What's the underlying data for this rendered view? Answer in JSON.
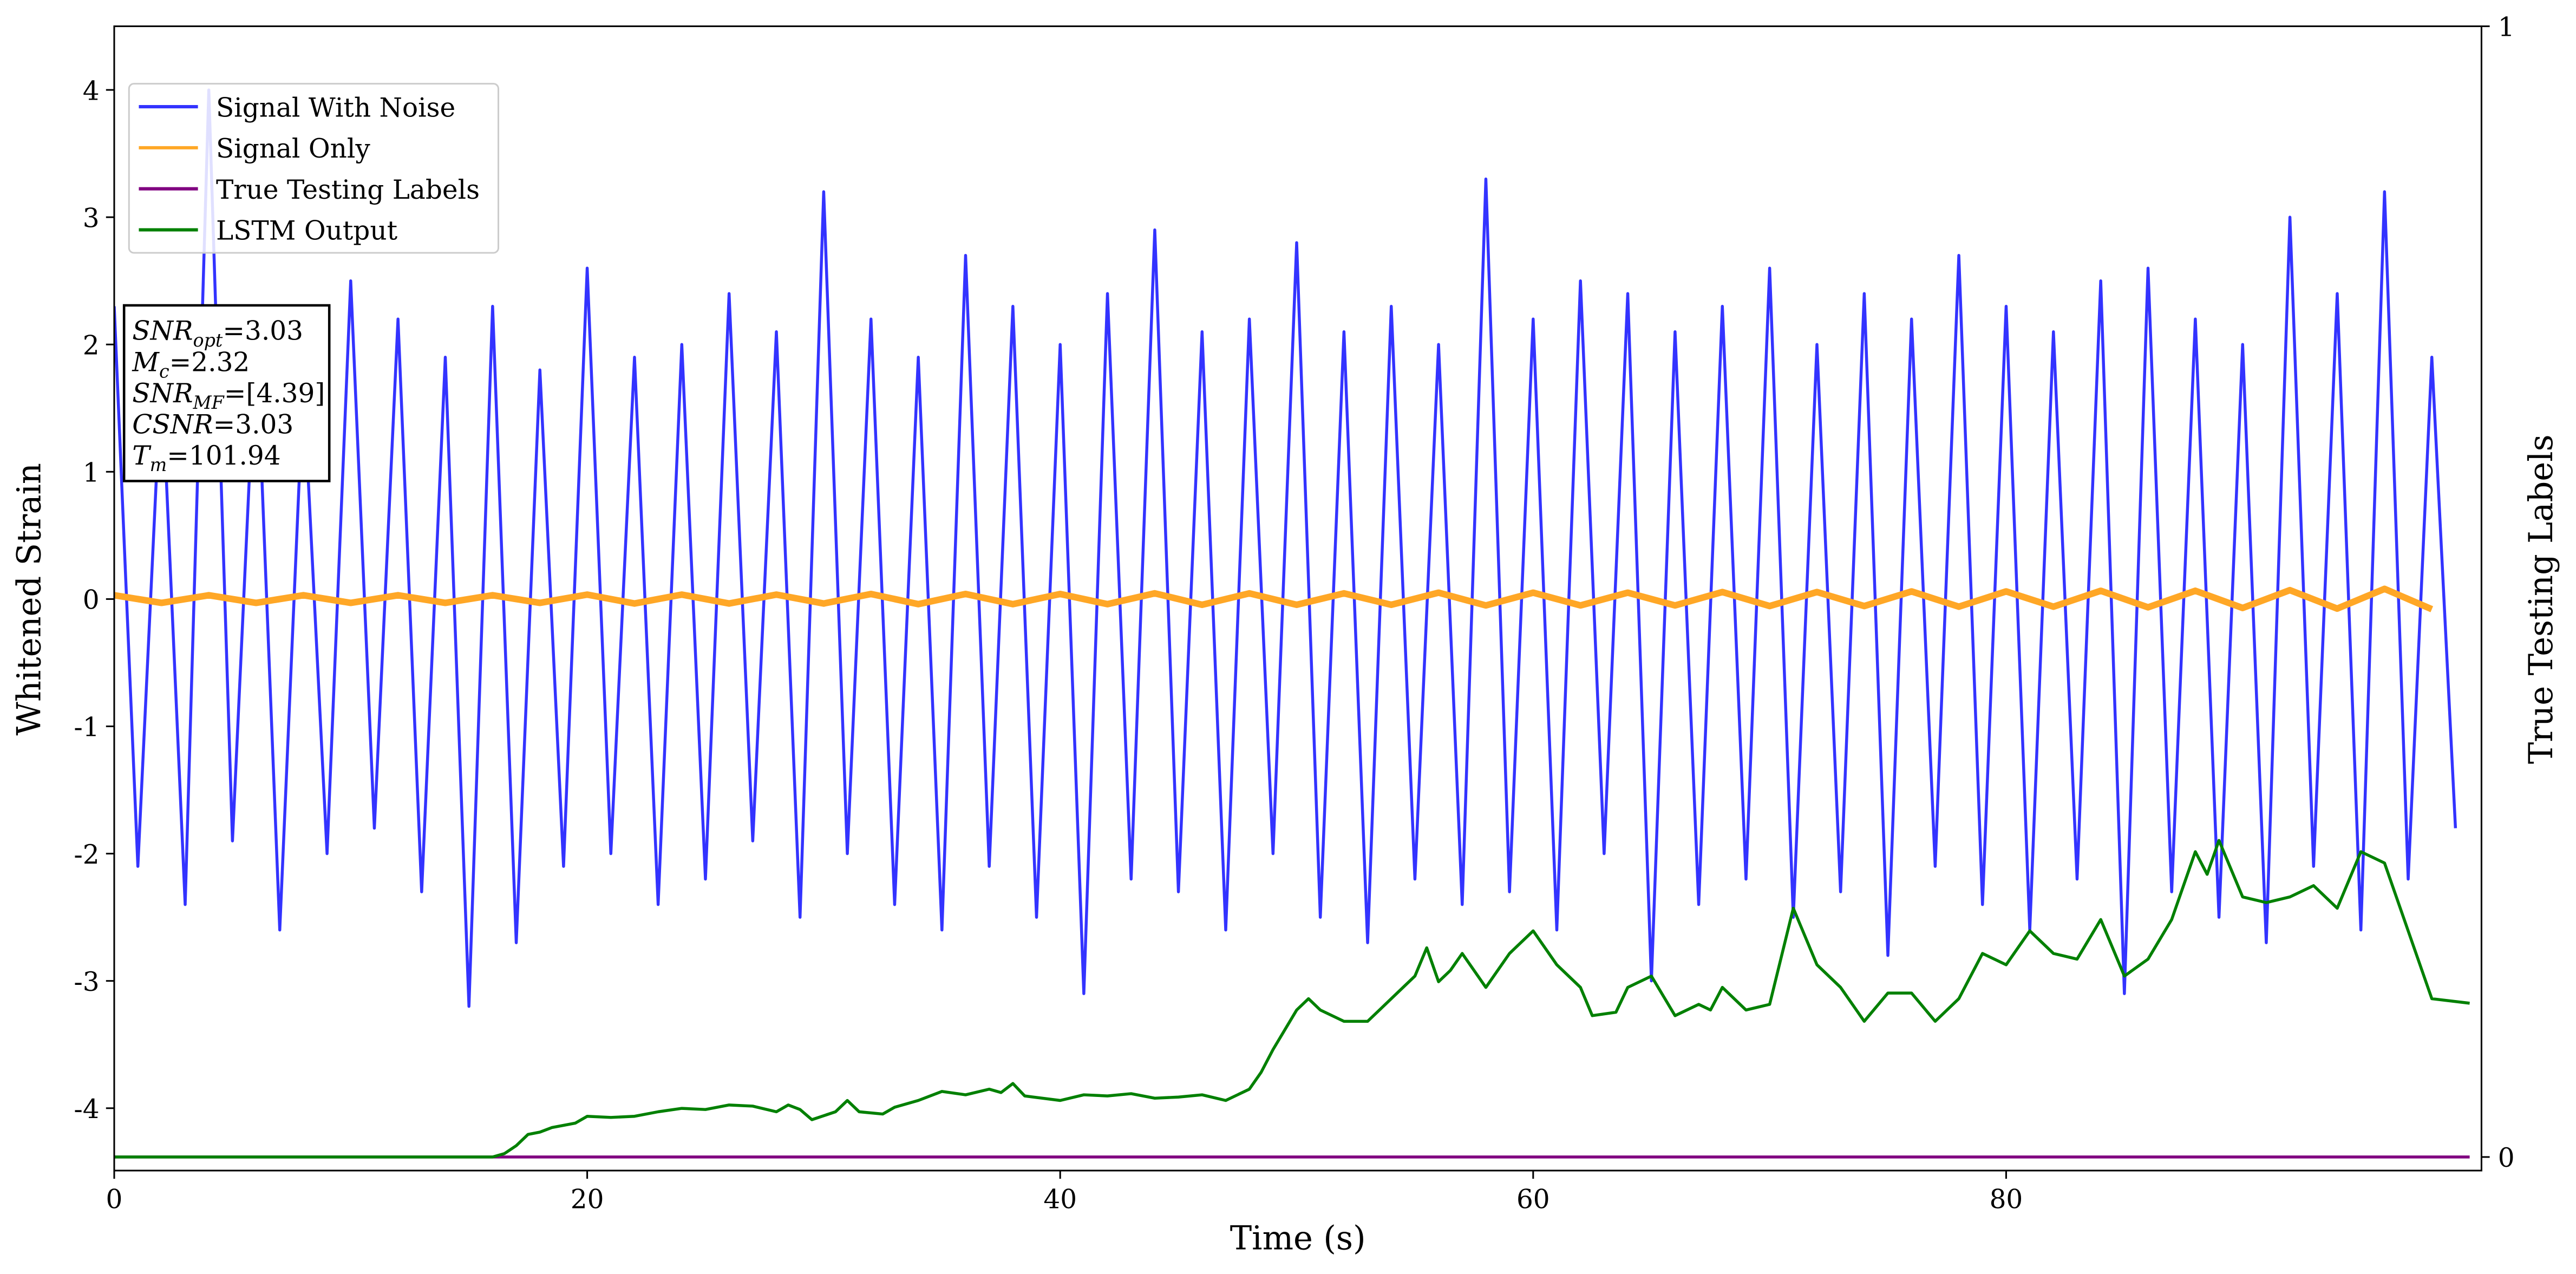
{
  "chart_data": {
    "type": "line",
    "xlabel": "Time (s)",
    "ylabel": "Whitened Strain",
    "y2label": "True Testing Labels",
    "xlim": [
      0,
      100.1
    ],
    "xticks": [
      0,
      20,
      40,
      60,
      80
    ],
    "ylim": [
      -4.49,
      4.5
    ],
    "yticks": [
      -4,
      -3,
      -2,
      -1,
      0,
      1,
      2,
      3,
      4
    ],
    "y2lim": [
      -0.012,
      1
    ],
    "y2ticks": [
      0,
      1
    ],
    "legend": "upper left",
    "annotations": [
      {
        "main": "SNR",
        "sub": "opt",
        "rest": "=3.03"
      },
      {
        "main": "M",
        "sub": "c",
        "rest": "=2.32"
      },
      {
        "main": "SNR",
        "sub": "MF",
        "rest": "=[4.39]"
      },
      {
        "main": "CSNR",
        "sub": "",
        "rest": "=3.03"
      },
      {
        "main": "T",
        "sub": "m",
        "rest": "=101.94"
      }
    ],
    "series": [
      {
        "name": "Signal With Noise",
        "color": "#3333ff",
        "x": [
          0,
          1,
          2,
          3,
          4,
          5,
          6,
          7,
          8,
          9,
          10,
          11,
          12,
          13,
          14,
          15,
          16,
          17,
          18,
          19,
          20,
          21,
          22,
          23,
          24,
          25,
          26,
          27,
          28,
          29,
          30,
          31,
          32,
          33,
          34,
          35,
          36,
          37,
          38,
          39,
          40,
          41,
          42,
          43,
          44,
          45,
          46,
          47,
          48,
          49,
          50,
          51,
          52,
          53,
          54,
          55,
          56,
          57,
          58,
          59,
          60,
          61,
          62,
          63,
          64,
          65,
          66,
          67,
          68,
          69,
          70,
          71,
          72,
          73,
          74,
          75,
          76,
          77,
          78,
          79,
          80,
          81,
          82,
          83,
          84,
          85,
          86,
          87,
          88,
          89,
          90,
          91,
          92,
          93,
          94,
          95,
          96,
          97,
          98,
          99
        ],
        "values": [
          2.3,
          -2.1,
          1.8,
          -2.4,
          4.0,
          -1.9,
          2.1,
          -2.6,
          1.7,
          -2.0,
          2.5,
          -1.8,
          2.2,
          -2.3,
          1.9,
          -3.2,
          2.3,
          -2.7,
          1.8,
          -2.1,
          2.6,
          -2.0,
          1.9,
          -2.4,
          2.0,
          -2.2,
          2.4,
          -1.9,
          2.1,
          -2.5,
          3.2,
          -2.0,
          2.2,
          -2.4,
          1.9,
          -2.6,
          2.7,
          -2.1,
          2.3,
          -2.5,
          2.0,
          -3.1,
          2.4,
          -2.2,
          2.9,
          -2.3,
          2.1,
          -2.6,
          2.2,
          -2.0,
          2.8,
          -2.5,
          2.1,
          -2.7,
          2.3,
          -2.2,
          2.0,
          -2.4,
          3.3,
          -2.3,
          2.2,
          -2.6,
          2.5,
          -2.0,
          2.4,
          -3.0,
          2.1,
          -2.4,
          2.3,
          -2.2,
          2.6,
          -2.5,
          2.0,
          -2.3,
          2.4,
          -2.8,
          2.2,
          -2.1,
          2.7,
          -2.4,
          2.3,
          -2.6,
          2.1,
          -2.2,
          2.5,
          -3.1,
          2.6,
          -2.3,
          2.2,
          -2.5,
          2.0,
          -2.7,
          3.0,
          -2.1,
          2.4,
          -2.6,
          3.2,
          -2.2,
          1.9,
          -1.8
        ]
      },
      {
        "name": "Signal Only",
        "color": "#ffa726",
        "x": [
          0,
          2,
          4,
          6,
          8,
          10,
          12,
          14,
          16,
          18,
          20,
          22,
          24,
          26,
          28,
          30,
          32,
          34,
          36,
          38,
          40,
          42,
          44,
          46,
          48,
          50,
          52,
          54,
          56,
          58,
          60,
          62,
          64,
          66,
          68,
          70,
          72,
          74,
          76,
          78,
          80,
          82,
          84,
          86,
          88,
          90,
          92,
          94,
          96,
          98
        ],
        "values": [
          0.03,
          -0.03,
          0.03,
          -0.03,
          0.03,
          -0.03,
          0.03,
          -0.03,
          0.03,
          -0.03,
          0.035,
          -0.035,
          0.035,
          -0.035,
          0.035,
          -0.035,
          0.04,
          -0.04,
          0.04,
          -0.04,
          0.04,
          -0.04,
          0.045,
          -0.045,
          0.045,
          -0.045,
          0.045,
          -0.045,
          0.05,
          -0.05,
          0.05,
          -0.05,
          0.05,
          -0.05,
          0.055,
          -0.055,
          0.055,
          -0.055,
          0.06,
          -0.06,
          0.06,
          -0.06,
          0.065,
          -0.065,
          0.065,
          -0.07,
          0.07,
          -0.075,
          0.08,
          -0.08
        ]
      },
      {
        "name": "True Testing Labels",
        "color": "#800080",
        "axis": "y2",
        "x": [
          0,
          99.6
        ],
        "values": [
          0,
          0
        ]
      },
      {
        "name": "LSTM Output",
        "color": "#008000",
        "axis": "y2",
        "x": [
          0,
          16,
          16.5,
          17,
          17.5,
          18,
          18.5,
          19.5,
          20,
          21,
          22,
          23,
          24,
          25,
          26,
          27,
          28,
          28.5,
          29,
          29.5,
          30.5,
          31,
          31.5,
          32.5,
          33,
          34,
          35,
          36,
          37,
          37.5,
          38,
          38.5,
          40,
          41,
          42,
          43,
          44,
          45,
          46,
          47,
          47.5,
          48,
          48.5,
          49,
          50,
          50.5,
          51,
          52,
          53,
          54,
          55,
          55.5,
          56,
          56.5,
          57,
          58,
          59,
          60,
          61,
          62,
          62.5,
          63.5,
          64,
          65,
          66,
          67,
          67.5,
          68,
          69,
          70,
          71,
          72,
          73,
          74,
          75,
          76,
          77,
          78,
          79,
          80,
          81,
          82,
          83,
          84,
          85,
          86,
          87,
          88,
          88.5,
          89,
          90,
          91,
          92,
          93,
          94,
          95,
          96,
          97,
          98,
          99.6
        ],
        "values": [
          0,
          0,
          0.003,
          0.01,
          0.02,
          0.022,
          0.026,
          0.03,
          0.036,
          0.035,
          0.036,
          0.04,
          0.043,
          0.042,
          0.046,
          0.045,
          0.04,
          0.046,
          0.042,
          0.033,
          0.04,
          0.05,
          0.04,
          0.038,
          0.044,
          0.05,
          0.058,
          0.055,
          0.06,
          0.057,
          0.065,
          0.054,
          0.05,
          0.055,
          0.054,
          0.056,
          0.052,
          0.053,
          0.055,
          0.05,
          0.055,
          0.06,
          0.075,
          0.095,
          0.13,
          0.14,
          0.13,
          0.12,
          0.12,
          0.14,
          0.16,
          0.185,
          0.155,
          0.165,
          0.18,
          0.15,
          0.18,
          0.2,
          0.17,
          0.15,
          0.125,
          0.128,
          0.15,
          0.16,
          0.125,
          0.135,
          0.13,
          0.15,
          0.13,
          0.135,
          0.22,
          0.17,
          0.15,
          0.12,
          0.145,
          0.145,
          0.12,
          0.14,
          0.18,
          0.17,
          0.2,
          0.18,
          0.175,
          0.21,
          0.16,
          0.175,
          0.21,
          0.27,
          0.25,
          0.28,
          0.23,
          0.225,
          0.23,
          0.24,
          0.22,
          0.27,
          0.26,
          0.2,
          0.14,
          0.136
        ]
      }
    ]
  }
}
